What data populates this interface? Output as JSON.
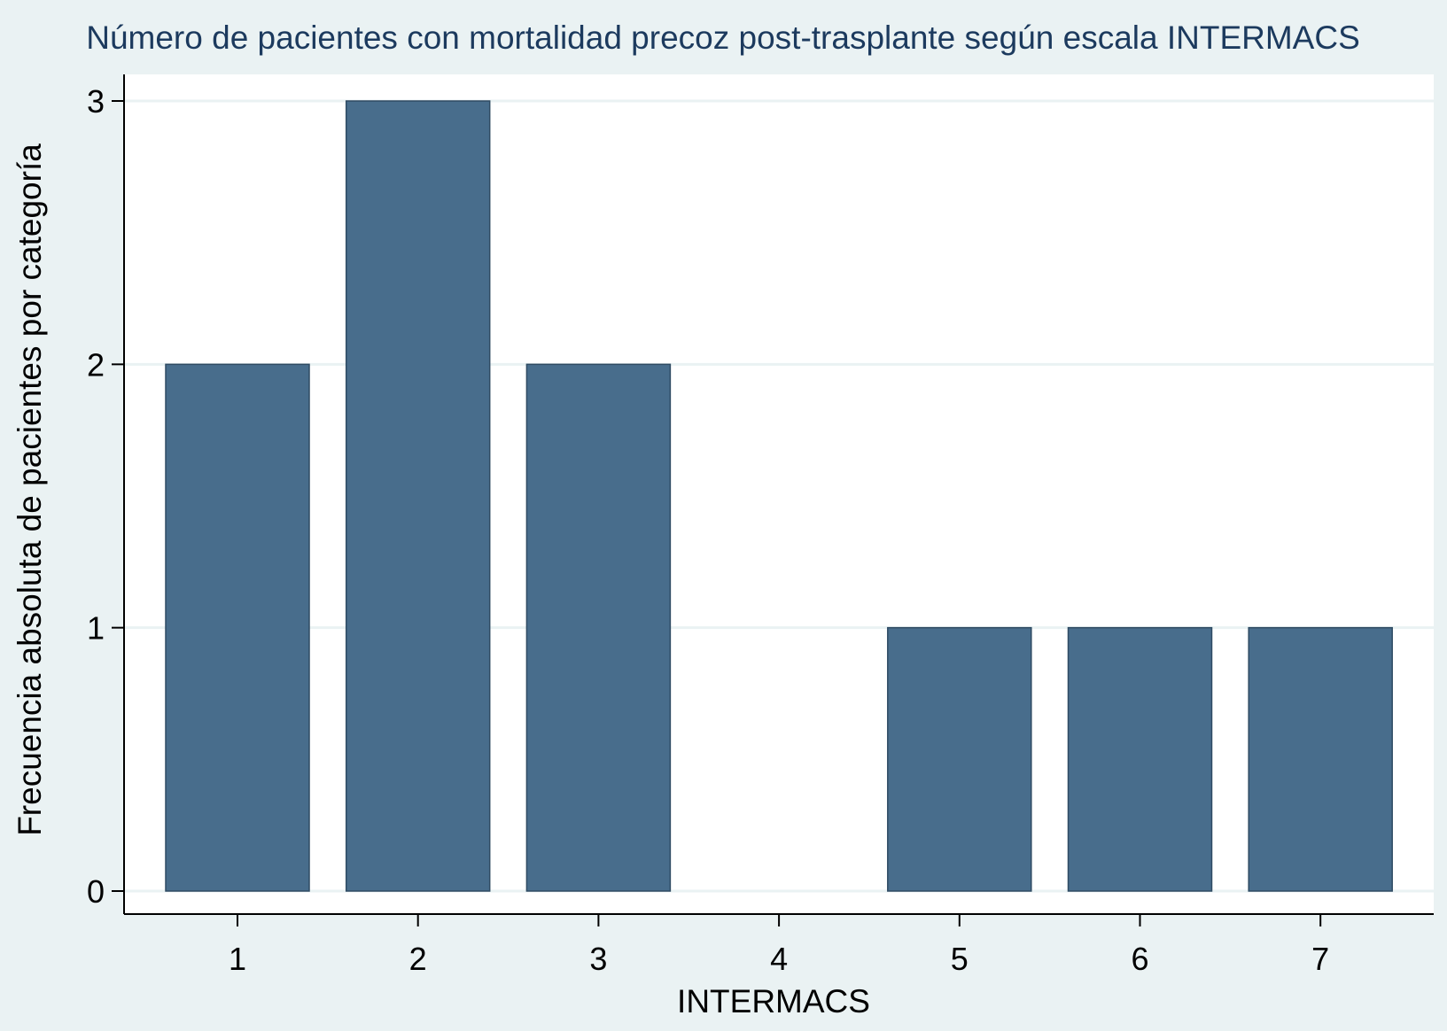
{
  "chart_data": {
    "type": "bar",
    "title": "Número de pacientes con mortalidad precoz post-trasplante según escala INTERMACS",
    "xlabel": "INTERMACS",
    "ylabel": "Frecuencia absoluta de pacientes por categoría",
    "categories": [
      "1",
      "2",
      "3",
      "4",
      "5",
      "6",
      "7"
    ],
    "values": [
      2,
      3,
      2,
      0,
      1,
      1,
      1
    ],
    "ylim": [
      0,
      3
    ],
    "yticks": [
      "0",
      "1",
      "2",
      "3"
    ],
    "grid": true,
    "legend": "none",
    "colors": {
      "bar": "#486d8c",
      "bar_edge": "#2f4b63",
      "plot_background": "#ffffff",
      "outer_background": "#eaf2f3",
      "grid": "#eaf2f3",
      "title": "#1c3a5e",
      "axis": "#000000"
    }
  }
}
